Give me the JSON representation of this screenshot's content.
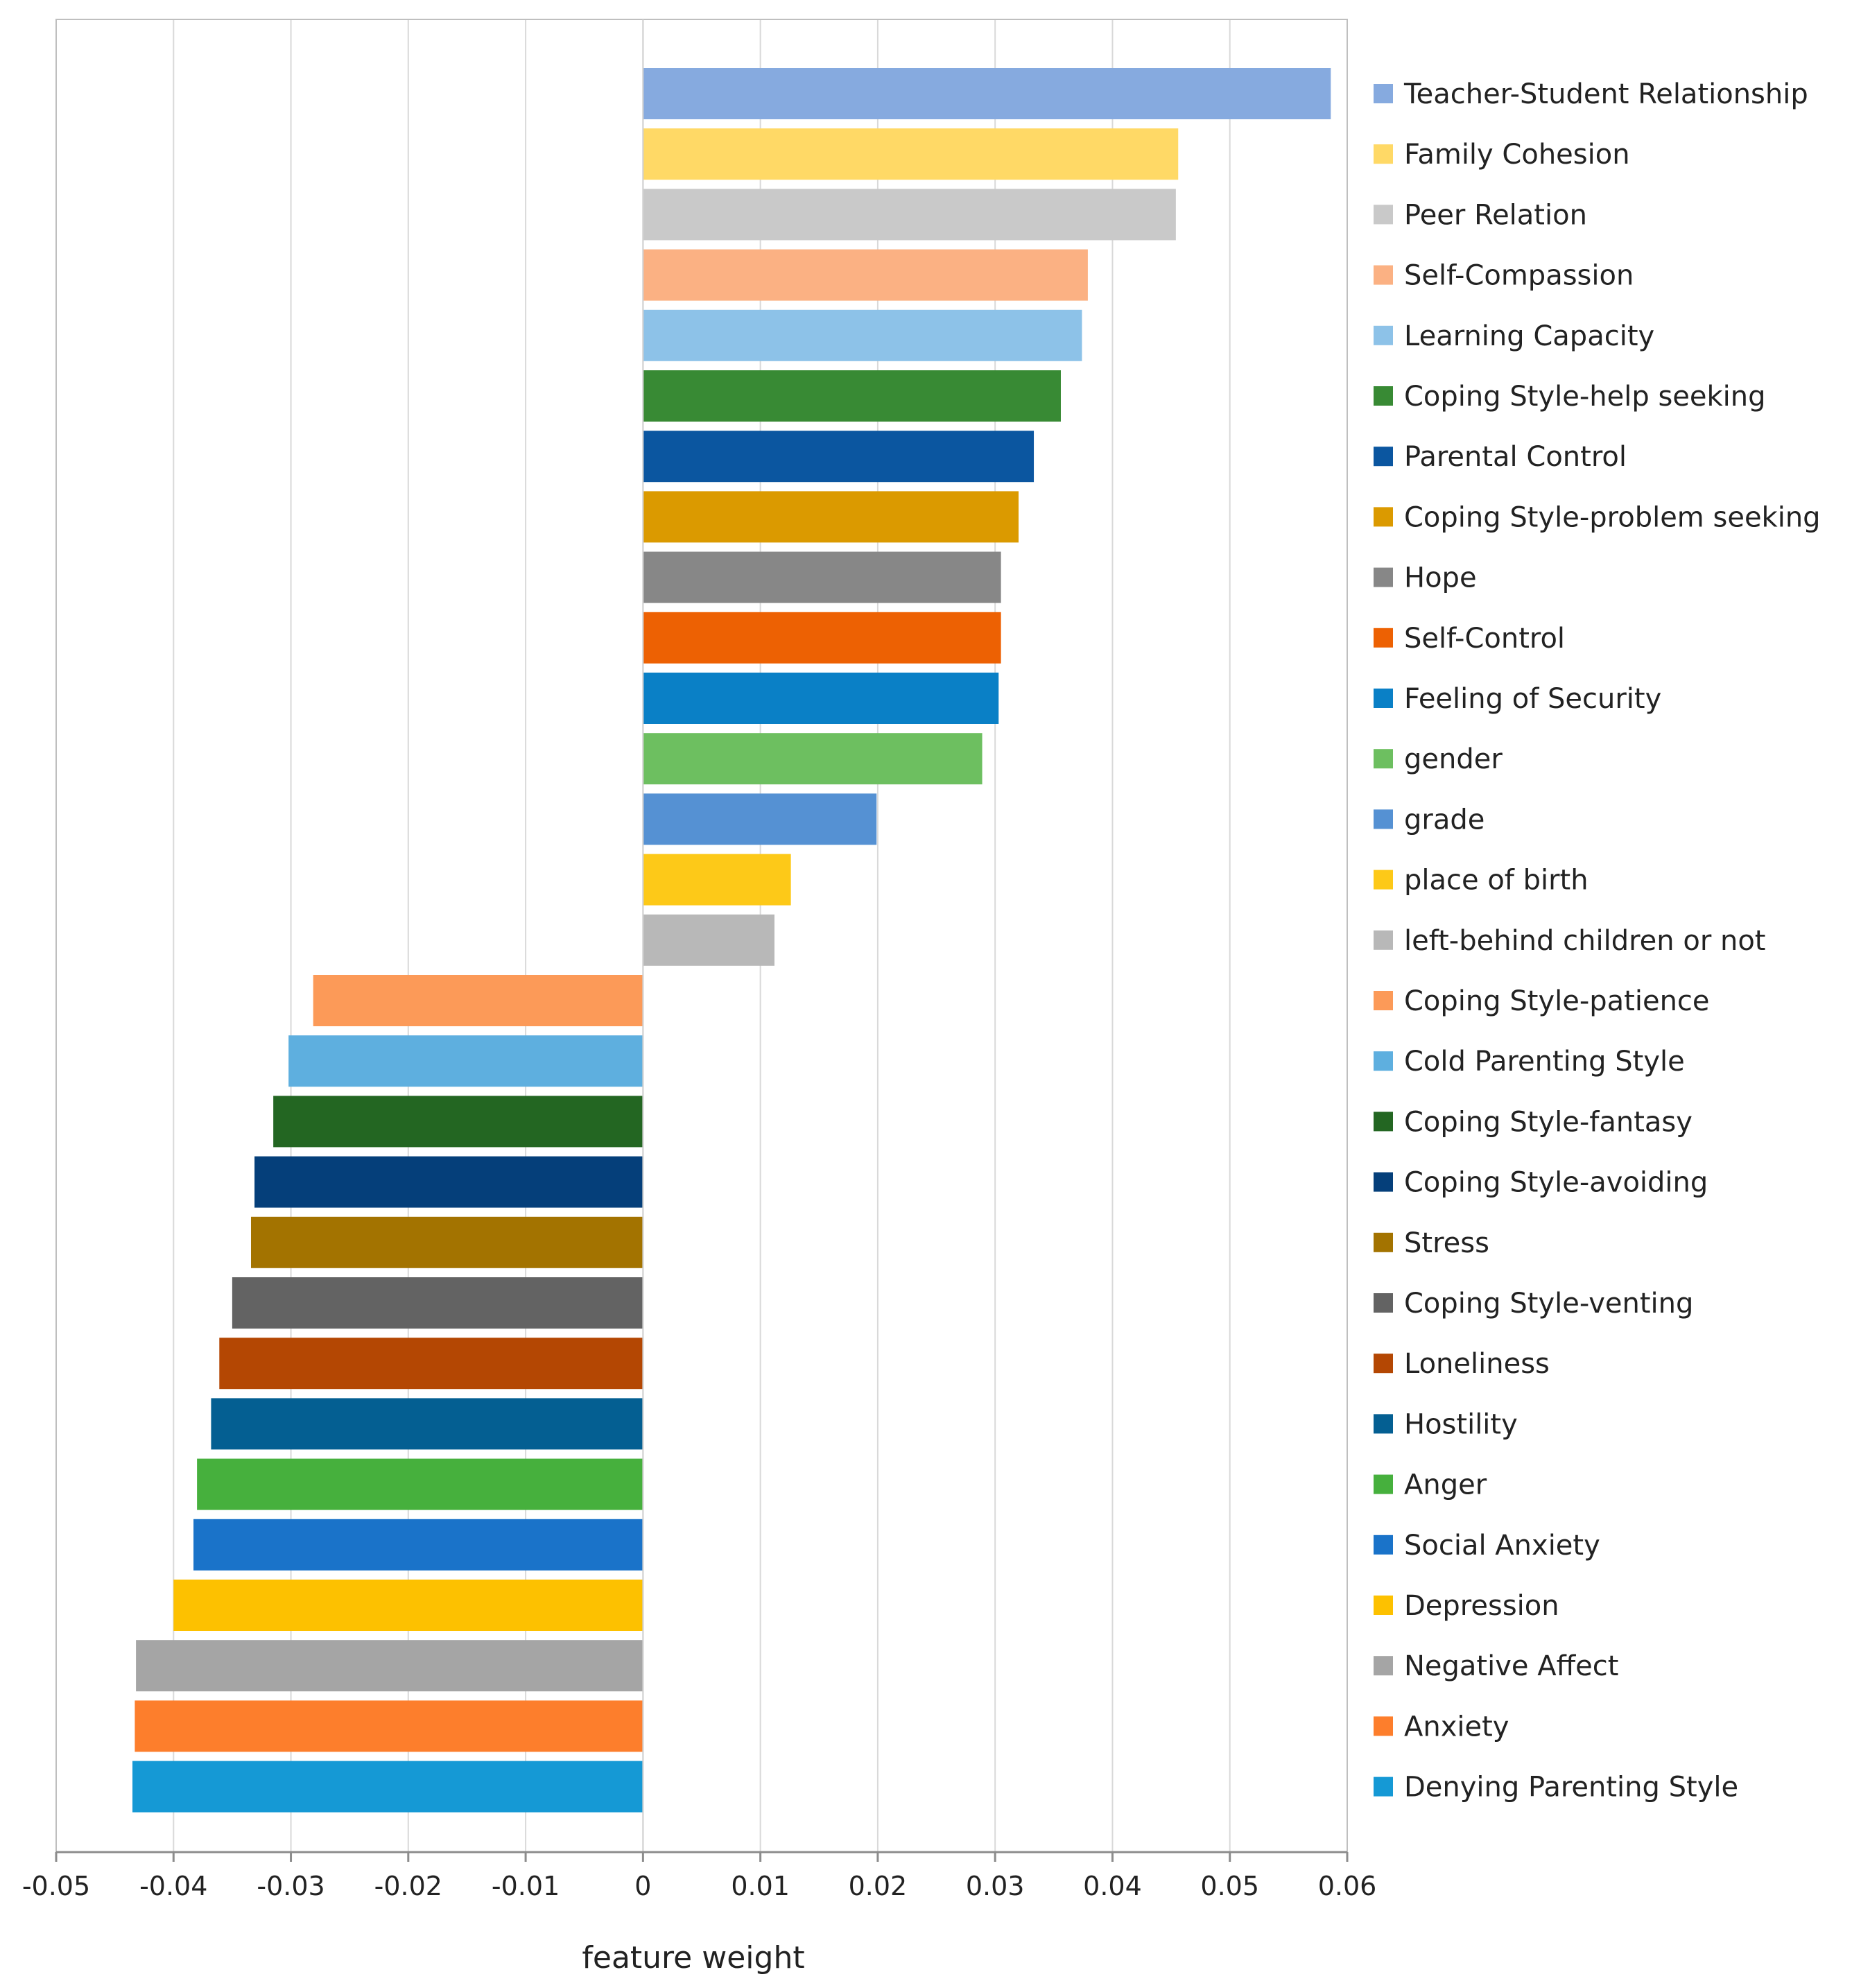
{
  "chart_data": {
    "type": "bar",
    "orientation": "horizontal",
    "title": "",
    "xlabel": "feature weight",
    "ylabel": "",
    "xlim": [
      -0.05,
      0.06
    ],
    "xticks": [
      -0.05,
      -0.04,
      -0.03,
      -0.02,
      -0.01,
      0,
      0.01,
      0.02,
      0.03,
      0.04,
      0.05,
      0.06
    ],
    "xtick_labels": [
      "-0.05",
      "-0.04",
      "-0.03",
      "-0.02",
      "-0.01",
      "0",
      "0.01",
      "0.02",
      "0.03",
      "0.04",
      "0.05",
      "0.06"
    ],
    "grid": "vertical",
    "legend": "right",
    "categories": [
      "Teacher-Student Relationship",
      "Family Cohesion",
      "Peer Relation",
      "Self-Compassion",
      "Learning Capacity",
      "Coping Style-help seeking",
      "Parental Control",
      "Coping Style-problem seeking",
      "Hope",
      "Self-Control",
      "Feeling of Security",
      "gender",
      "grade",
      "place of birth",
      "left-behind children or not",
      "Coping Style-patience",
      "Cold Parenting Style",
      "Coping Style-fantasy",
      "Coping Style-avoiding",
      "Stress",
      "Coping Style-venting",
      "Loneliness",
      "Hostility",
      "Anger",
      "Social Anxiety",
      "Depression",
      "Negative Affect",
      "Anxiety",
      "Denying Parenting Style"
    ],
    "values": [
      0.0586,
      0.0456,
      0.0454,
      0.0379,
      0.0374,
      0.0356,
      0.0333,
      0.032,
      0.0305,
      0.0305,
      0.0303,
      0.0289,
      0.0199,
      0.0126,
      0.0112,
      -0.0281,
      -0.0302,
      -0.0315,
      -0.0331,
      -0.0334,
      -0.035,
      -0.0361,
      -0.0368,
      -0.038,
      -0.0383,
      -0.04,
      -0.0432,
      -0.0433,
      -0.0435
    ],
    "colors": [
      "#86aadf",
      "#ffd966",
      "#c9c9c9",
      "#fbb183",
      "#8dc2e8",
      "#388a34",
      "#0b56a0",
      "#db9a00",
      "#878787",
      "#ed6103",
      "#0a80c6",
      "#6dbf60",
      "#5591d3",
      "#fdc918",
      "#b8b8b8",
      "#fc9a58",
      "#5eafdf",
      "#236622",
      "#053f7a",
      "#a37300",
      "#636363",
      "#b44703",
      "#045f92",
      "#46b03d",
      "#1a73c9",
      "#fdc100",
      "#a5a5a5",
      "#fd7e2c",
      "#1599d5"
    ]
  }
}
